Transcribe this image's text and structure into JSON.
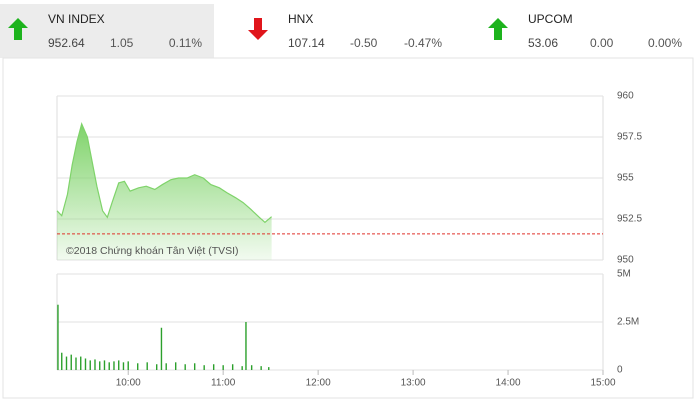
{
  "header": {
    "indices": [
      {
        "name": "VN INDEX",
        "value": "952.64",
        "change": "1.05",
        "percent": "0.11%",
        "direction": "up"
      },
      {
        "name": "HNX",
        "value": "107.14",
        "change": "-0.50",
        "percent": "-0.47%",
        "direction": "down"
      },
      {
        "name": "UPCOM",
        "value": "53.06",
        "change": "0.00",
        "percent": "0.00%",
        "direction": "up"
      }
    ]
  },
  "chart_data": [
    {
      "type": "area",
      "annotation": "©2018 Chứng khoán Tân Việt (TVSI)",
      "color": "#7fd36a",
      "grid": true,
      "reference_line": 951.59,
      "reference_color": "#e0322b",
      "x": [
        9.25,
        9.3,
        9.36,
        9.41,
        9.46,
        9.51,
        9.57,
        9.62,
        9.67,
        9.73,
        9.78,
        9.83,
        9.9,
        9.96,
        10.02,
        10.11,
        10.19,
        10.28,
        10.36,
        10.45,
        10.53,
        10.62,
        10.7,
        10.79,
        10.87,
        10.96,
        11.04,
        11.13,
        11.21,
        11.29,
        11.38,
        11.44,
        11.51
      ],
      "values": [
        953.0,
        952.7,
        954.0,
        955.8,
        957.2,
        958.3,
        957.5,
        956.0,
        954.5,
        953.0,
        952.6,
        953.5,
        954.7,
        954.8,
        954.2,
        954.4,
        954.5,
        954.3,
        954.6,
        954.9,
        955.0,
        955.0,
        955.2,
        955.0,
        954.6,
        954.4,
        954.1,
        953.8,
        953.5,
        953.1,
        952.6,
        952.3,
        952.64
      ],
      "xlim": [
        9.25,
        15
      ],
      "ylim": [
        950,
        960
      ],
      "yticks": [
        960,
        957.5,
        955,
        952.5,
        950
      ]
    },
    {
      "type": "volume",
      "color": "#2ca02c",
      "grid": true,
      "x": [
        9.26,
        9.3,
        9.35,
        9.4,
        9.45,
        9.5,
        9.55,
        9.6,
        9.65,
        9.7,
        9.75,
        9.8,
        9.85,
        9.9,
        9.95,
        10.0,
        10.1,
        10.2,
        10.3,
        10.35,
        10.4,
        10.5,
        10.6,
        10.7,
        10.8,
        10.9,
        11.0,
        11.1,
        11.2,
        11.24,
        11.3,
        11.4,
        11.48
      ],
      "values": [
        3400000,
        900000,
        700000,
        800000,
        650000,
        700000,
        600000,
        500000,
        550000,
        450000,
        500000,
        400000,
        450000,
        500000,
        400000,
        450000,
        350000,
        400000,
        300000,
        2200000,
        350000,
        400000,
        300000,
        350000,
        250000,
        300000,
        250000,
        300000,
        200000,
        2500000,
        250000,
        200000,
        150000
      ],
      "xlim": [
        9.25,
        15
      ],
      "ylim": [
        0,
        5000000
      ],
      "yticks": [
        {
          "value": 5000000,
          "label": "5M"
        },
        {
          "value": 2500000,
          "label": "2.5M"
        },
        0
      ],
      "xticks": [
        {
          "value": 10,
          "label": "10:00"
        },
        {
          "value": 11,
          "label": "11:00"
        },
        {
          "value": 12,
          "label": "12:00"
        },
        {
          "value": 13,
          "label": "13:00"
        },
        {
          "value": 14,
          "label": "14:00"
        },
        {
          "value": 15,
          "label": "15:00"
        }
      ]
    }
  ]
}
